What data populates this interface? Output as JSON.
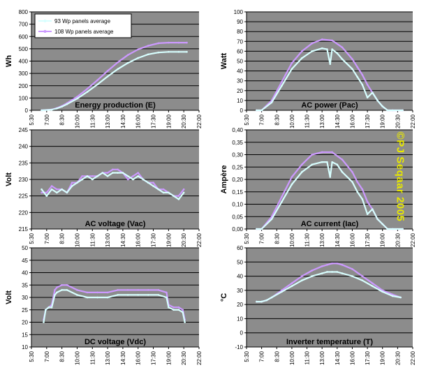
{
  "copyright": "©PJ Seqaar 2005",
  "colors": {
    "plot_background": "#8c8c8c",
    "gridline": "#000000",
    "series_93": "#d8ffff",
    "series_108": "#cc99ff"
  },
  "x_tick_labels": [
    "5:30",
    "7:00",
    "8:30",
    "10:00",
    "11:30",
    "13:00",
    "14:30",
    "16:00",
    "17:30",
    "19:00",
    "20:30",
    "22:00"
  ],
  "chart_data": [
    {
      "type": "line",
      "panel": "energy",
      "title": "Energy production (E)",
      "ylabel": "Wh",
      "ylim": [
        0,
        800
      ],
      "y_ticks": [
        0,
        100,
        200,
        300,
        400,
        500,
        600,
        700,
        800
      ],
      "y_tick_labels": [
        "0",
        "100",
        "200",
        "300",
        "400",
        "500",
        "600",
        "700",
        "800"
      ],
      "xlim": [
        5.5,
        22
      ],
      "legend": {
        "placement": "top-left",
        "entries": [
          "93 Wp panels average",
          "108 Wp panels average"
        ]
      },
      "series": [
        {
          "name": "93 Wp panels average",
          "color": "#d8ffff",
          "x": [
            6.5,
            7.5,
            8,
            8.5,
            9,
            10,
            11,
            12,
            13,
            14,
            15,
            16,
            17,
            18,
            19,
            20,
            20.8
          ],
          "y": [
            0,
            5,
            15,
            30,
            50,
            95,
            150,
            210,
            275,
            335,
            385,
            425,
            455,
            470,
            475,
            475,
            475
          ]
        },
        {
          "name": "108 Wp panels average",
          "color": "#cc99ff",
          "x": [
            6.5,
            7.5,
            8,
            8.5,
            9,
            10,
            11,
            12,
            13,
            14,
            15,
            16,
            17,
            18,
            19,
            20,
            20.8
          ],
          "y": [
            0,
            6,
            18,
            35,
            58,
            110,
            175,
            245,
            320,
            390,
            450,
            495,
            525,
            545,
            550,
            550,
            550
          ]
        }
      ]
    },
    {
      "type": "line",
      "panel": "ac_power",
      "title": "AC power (Pac)",
      "ylabel": "Watt",
      "ylim": [
        0,
        100
      ],
      "y_ticks": [
        0,
        10,
        20,
        30,
        40,
        50,
        60,
        70,
        80,
        90,
        100
      ],
      "y_tick_labels": [
        "0",
        "10",
        "20",
        "30",
        "40",
        "50",
        "60",
        "70",
        "80",
        "90",
        "100"
      ],
      "xlim": [
        5.5,
        22
      ],
      "series": [
        {
          "name": "93 Wp panels average",
          "color": "#d8ffff",
          "x": [
            6.5,
            7,
            8,
            9,
            10,
            11,
            12,
            13,
            13.5,
            13.8,
            14,
            14.5,
            15,
            16,
            16.5,
            17,
            17.5,
            18,
            18.5,
            19,
            19.5,
            20,
            21
          ],
          "y": [
            0,
            0,
            8,
            25,
            42,
            53,
            60,
            63,
            62,
            47,
            62,
            58,
            52,
            42,
            34,
            26,
            13,
            18,
            10,
            4,
            0,
            0,
            0
          ]
        },
        {
          "name": "108 Wp panels average",
          "color": "#cc99ff",
          "x": [
            6.5,
            7,
            8,
            9,
            10,
            11,
            12,
            13,
            14,
            15,
            16,
            16.5,
            17,
            17.5,
            18,
            18.5,
            19,
            19.5,
            20,
            21
          ],
          "y": [
            0,
            0,
            10,
            29,
            48,
            60,
            68,
            72,
            71,
            64,
            52,
            44,
            36,
            26,
            18,
            10,
            4,
            0,
            0,
            0
          ]
        }
      ]
    },
    {
      "type": "line",
      "panel": "ac_voltage",
      "title": "AC voltage (Vac)",
      "ylabel": "Volt",
      "ylim": [
        215,
        245
      ],
      "y_ticks": [
        215,
        220,
        225,
        230,
        235,
        240,
        245
      ],
      "y_tick_labels": [
        "215",
        "220",
        "225",
        "230",
        "235",
        "240",
        "245"
      ],
      "xlim": [
        5.5,
        22
      ],
      "series": [
        {
          "name": "93 Wp panels average",
          "color": "#d8ffff",
          "x": [
            6.5,
            7,
            7.5,
            8,
            8.5,
            9,
            9.5,
            10,
            10.5,
            11,
            11.5,
            12,
            12.5,
            13,
            13.5,
            14,
            14.5,
            15,
            15.5,
            16,
            16.5,
            17,
            17.5,
            18,
            18.5,
            19,
            19.5,
            20,
            20.5
          ],
          "y": [
            227,
            225,
            227,
            226,
            227,
            226,
            228,
            229,
            230,
            231,
            230,
            231,
            232,
            231,
            232,
            232,
            232,
            231,
            230,
            231,
            230,
            229,
            228,
            227,
            226,
            226,
            225,
            224,
            226
          ]
        },
        {
          "name": "108 Wp panels average",
          "color": "#cc99ff",
          "x": [
            6.5,
            7,
            7.5,
            8,
            8.5,
            9,
            9.5,
            10,
            10.5,
            11,
            11.5,
            12,
            12.5,
            13,
            13.5,
            14,
            14.5,
            15,
            15.5,
            16,
            16.5,
            17,
            17.5,
            18,
            18.5,
            19,
            19.5,
            20,
            20.5
          ],
          "y": [
            226,
            226,
            228,
            227,
            227,
            226,
            229,
            229,
            231,
            231,
            231,
            231,
            232,
            232,
            233,
            233,
            232,
            230,
            231,
            232,
            230,
            229,
            229,
            227,
            227,
            226,
            225,
            225,
            227
          ]
        }
      ]
    },
    {
      "type": "line",
      "panel": "ac_current",
      "title": "AC current (Iac)",
      "ylabel": "Ampère",
      "ylim": [
        0,
        0.4
      ],
      "y_ticks": [
        0,
        0.05,
        0.1,
        0.15,
        0.2,
        0.25,
        0.3,
        0.35,
        0.4
      ],
      "y_tick_labels": [
        "0,00",
        "0,05",
        "0,10",
        "0,15",
        "0,20",
        "0,25",
        "0,30",
        "0,35",
        "0,40"
      ],
      "xlim": [
        5.5,
        22
      ],
      "series": [
        {
          "name": "93 Wp panels average",
          "color": "#d8ffff",
          "x": [
            6.5,
            7,
            8,
            9,
            10,
            11,
            12,
            13,
            13.5,
            13.8,
            14,
            14.5,
            15,
            16,
            16.5,
            17,
            17.5,
            18,
            18.5,
            19,
            19.5,
            20,
            21
          ],
          "y": [
            0,
            0,
            0.04,
            0.11,
            0.18,
            0.23,
            0.26,
            0.27,
            0.27,
            0.21,
            0.27,
            0.26,
            0.23,
            0.19,
            0.15,
            0.12,
            0.06,
            0.08,
            0.04,
            0.02,
            0,
            0,
            0
          ]
        },
        {
          "name": "108 Wp panels average",
          "color": "#cc99ff",
          "x": [
            6.5,
            7,
            8,
            9,
            10,
            11,
            12,
            13,
            14,
            15,
            16,
            16.5,
            17,
            17.5,
            18,
            18.5,
            19,
            19.5,
            20,
            21
          ],
          "y": [
            0,
            0,
            0.05,
            0.13,
            0.21,
            0.26,
            0.3,
            0.31,
            0.31,
            0.28,
            0.23,
            0.19,
            0.16,
            0.11,
            0.08,
            0.04,
            0.02,
            0,
            0,
            0
          ]
        }
      ]
    },
    {
      "type": "line",
      "panel": "dc_voltage",
      "title": "DC voltage (Vdc)",
      "ylabel": "Volt",
      "ylim": [
        10,
        50
      ],
      "y_ticks": [
        10,
        15,
        20,
        25,
        30,
        35,
        40,
        45,
        50
      ],
      "y_tick_labels": [
        "10",
        "15",
        "20",
        "25",
        "30",
        "35",
        "40",
        "45",
        "50"
      ],
      "xlim": [
        5.5,
        22
      ],
      "series": [
        {
          "name": "93 Wp panels average",
          "color": "#d8ffff",
          "x": [
            6.7,
            6.9,
            7.2,
            7.5,
            7.8,
            8,
            8.5,
            9,
            10,
            11,
            12,
            13,
            14,
            15,
            16,
            17,
            18,
            18.8,
            19,
            19.5,
            20,
            20.4,
            20.6
          ],
          "y": [
            20,
            25,
            26,
            26,
            31,
            32,
            33,
            33,
            31,
            30,
            30,
            30,
            31,
            31,
            31,
            31,
            31,
            30,
            26,
            25,
            25,
            24,
            20
          ]
        },
        {
          "name": "108 Wp panels average",
          "color": "#cc99ff",
          "x": [
            6.7,
            6.9,
            7.2,
            7.5,
            7.8,
            8,
            8.5,
            9,
            10,
            11,
            12,
            13,
            14,
            15,
            16,
            17,
            18,
            18.8,
            19,
            19.5,
            20,
            20.4,
            20.6
          ],
          "y": [
            21,
            25,
            26,
            27,
            33,
            34,
            35,
            35,
            33,
            32,
            32,
            32,
            33,
            33,
            33,
            33,
            33,
            32,
            27,
            26,
            26,
            25,
            21
          ]
        }
      ]
    },
    {
      "type": "line",
      "panel": "inverter_temperature",
      "title": "Inverter temperature (T)",
      "ylabel": "°C",
      "ylim": [
        -10,
        60
      ],
      "y_ticks": [
        -10,
        0,
        10,
        20,
        30,
        40,
        50,
        60
      ],
      "y_tick_labels": [
        "-10",
        "0",
        "10",
        "20",
        "30",
        "40",
        "50",
        "60"
      ],
      "xlim": [
        5.5,
        22
      ],
      "series": [
        {
          "name": "93 Wp panels average",
          "color": "#d8ffff",
          "x": [
            6.5,
            7,
            7.5,
            8,
            9,
            10,
            11,
            12,
            13,
            13.5,
            14,
            14.5,
            15,
            16,
            17,
            18,
            19,
            20,
            20.8
          ],
          "y": [
            22,
            22,
            23,
            25,
            29,
            33,
            37,
            40,
            42,
            43,
            43,
            43,
            42,
            40,
            37,
            33,
            29,
            26,
            25
          ]
        },
        {
          "name": "108 Wp panels average",
          "color": "#cc99ff",
          "x": [
            6.5,
            7,
            7.5,
            8,
            9,
            10,
            11,
            12,
            13,
            13.5,
            14,
            14.5,
            15,
            16,
            17,
            18,
            19,
            20,
            20.8
          ],
          "y": [
            22,
            22,
            23,
            25,
            30,
            35,
            40,
            44,
            47,
            48,
            49,
            49,
            48,
            45,
            40,
            35,
            30,
            27,
            25
          ]
        }
      ]
    }
  ]
}
